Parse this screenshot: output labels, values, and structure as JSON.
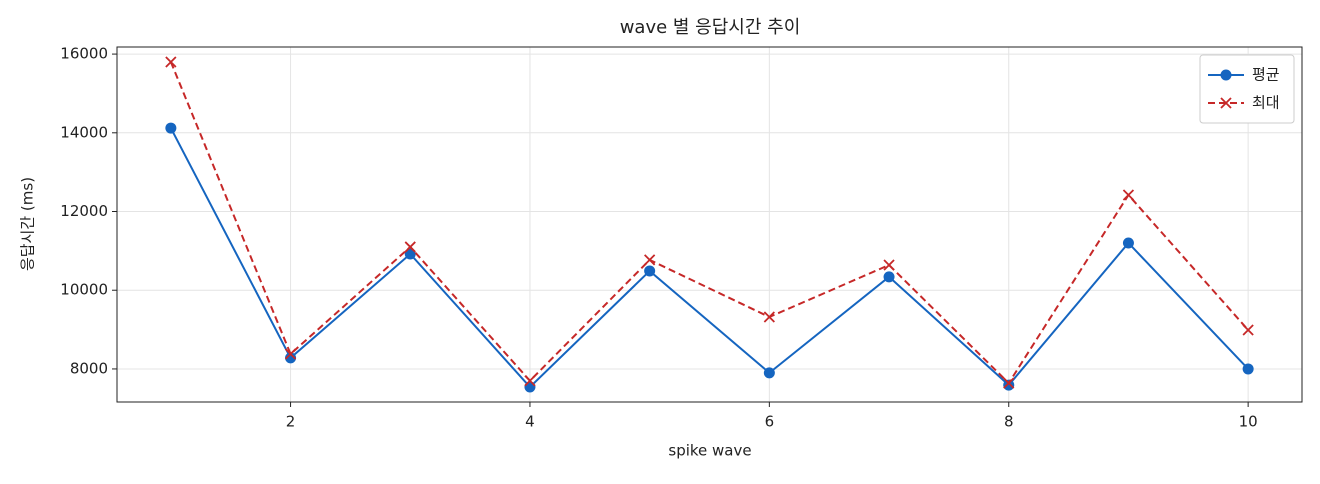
{
  "chart_data": {
    "type": "line",
    "title": "wave 별 응답시간 추이",
    "x_label": "spike wave",
    "y_label": "응답시간 (ms)",
    "x": [
      1,
      2,
      3,
      4,
      5,
      6,
      7,
      8,
      9,
      10
    ],
    "series": [
      {
        "name": "평균",
        "color": "#1565c0",
        "marker": "circle",
        "dash": false,
        "values": [
          14120,
          8280,
          10920,
          7540,
          10490,
          7900,
          10340,
          7590,
          11200,
          8000
        ]
      },
      {
        "name": "최대",
        "color": "#c62828",
        "marker": "x",
        "dash": true,
        "values": [
          15800,
          8380,
          11100,
          7700,
          10770,
          9320,
          10640,
          7640,
          12420,
          8990
        ]
      }
    ],
    "xlim": [
      0.55,
      10.45
    ],
    "xticks": [
      2,
      4,
      6,
      8,
      10
    ],
    "ylim": [
      7160,
      16180
    ],
    "yticks": [
      8000,
      10000,
      12000,
      14000,
      16000
    ],
    "grid": true,
    "legend": "upper right"
  }
}
